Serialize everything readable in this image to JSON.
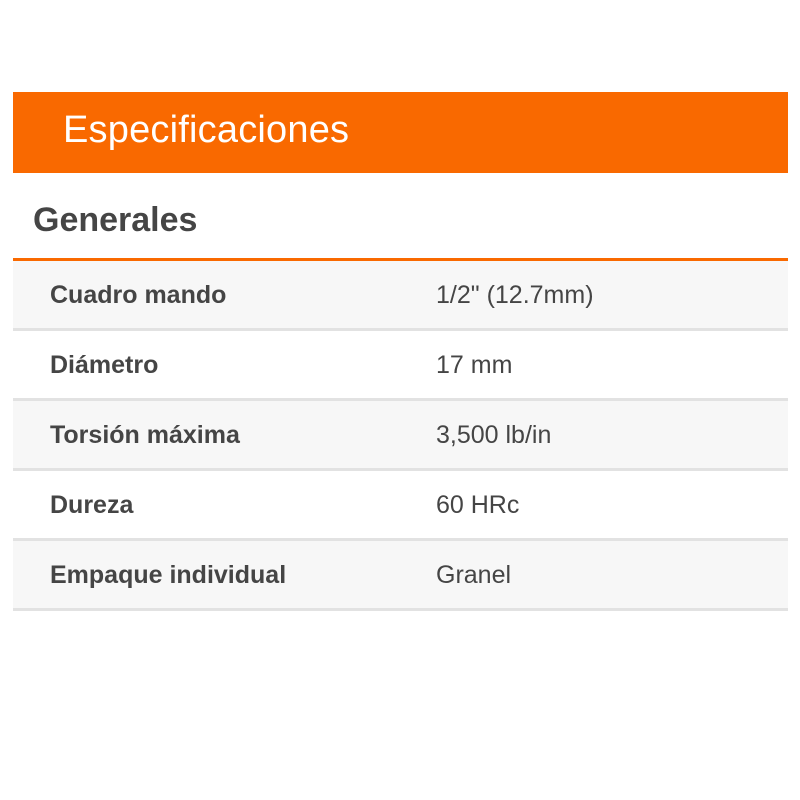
{
  "header": {
    "title": "Especificaciones"
  },
  "section": {
    "title": "Generales"
  },
  "specs": [
    {
      "label": "Cuadro mando",
      "value": "1/2\" (12.7mm)"
    },
    {
      "label": "Diámetro",
      "value": "17 mm"
    },
    {
      "label": "Torsión máxima",
      "value": "3,500 lb/in"
    },
    {
      "label": "Dureza",
      "value": "60 HRc"
    },
    {
      "label": "Empaque individual",
      "value": "Granel"
    }
  ],
  "colors": {
    "accent": "#f96900",
    "row_alt": "#f7f7f7",
    "divider": "#e2e2e2",
    "text": "#454545"
  }
}
